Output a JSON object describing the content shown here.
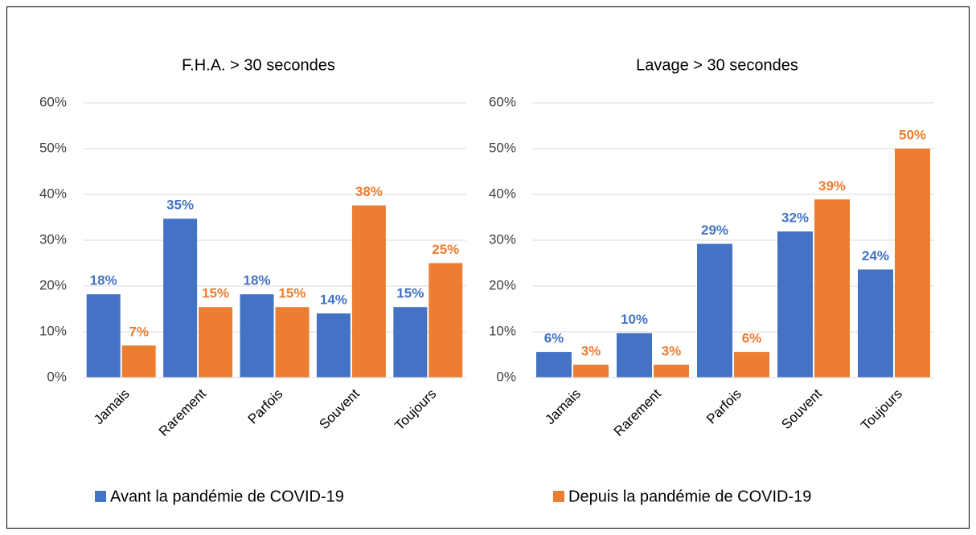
{
  "chart_data": [
    {
      "type": "bar",
      "title": "F.H.A. > 30 secondes",
      "categories": [
        "Jamais",
        "Rarement",
        "Parfois",
        "Souvent",
        "Toujours"
      ],
      "series": [
        {
          "name": "Avant la pandémie de COVID-19",
          "color": "#4472c4",
          "values": [
            18.2,
            34.7,
            18.2,
            14,
            15.4
          ],
          "value_labels": [
            "18%",
            "35%",
            "18%",
            "14%",
            "15%"
          ]
        },
        {
          "name": "Depuis la pandémie de COVID-19",
          "color": "#ed7d31",
          "values": [
            7,
            15.4,
            15.4,
            37.6,
            25
          ],
          "value_labels": [
            "7%",
            "15%",
            "15%",
            "38%",
            "25%"
          ]
        }
      ],
      "ylim": [
        0,
        60
      ],
      "yticks": [
        {
          "value": 0,
          "label": "0%"
        },
        {
          "value": 10,
          "label": "10%"
        },
        {
          "value": 20,
          "label": "20%"
        },
        {
          "value": 30,
          "label": "30%"
        },
        {
          "value": 40,
          "label": "40%"
        },
        {
          "value": 50,
          "label": "50%"
        },
        {
          "value": 60,
          "label": "60%"
        }
      ],
      "grid": true
    },
    {
      "type": "bar",
      "title": "Lavage > 30 secondes",
      "categories": [
        "Jamais",
        "Rarement",
        "Parfois",
        "Souvent",
        "Toujours"
      ],
      "series": [
        {
          "color": "#4472c4",
          "values": [
            5.6,
            9.7,
            29.2,
            31.9,
            23.6
          ],
          "value_labels": [
            "6%",
            "10%",
            "29%",
            "32%",
            "24%"
          ]
        },
        {
          "color": "#ed7d31",
          "values": [
            2.8,
            2.8,
            5.6,
            38.9,
            50
          ],
          "value_labels": [
            "3%",
            "3%",
            "6%",
            "39%",
            "50%"
          ]
        }
      ],
      "ylim": [
        0,
        60
      ],
      "yticks": [
        {
          "value": 0,
          "label": "0%"
        },
        {
          "value": 10,
          "label": "10%"
        },
        {
          "value": 20,
          "label": "20%"
        },
        {
          "value": 30,
          "label": "30%"
        },
        {
          "value": 40,
          "label": "40%"
        },
        {
          "value": 50,
          "label": "50%"
        },
        {
          "value": 60,
          "label": "60%"
        }
      ],
      "grid": true
    }
  ]
}
